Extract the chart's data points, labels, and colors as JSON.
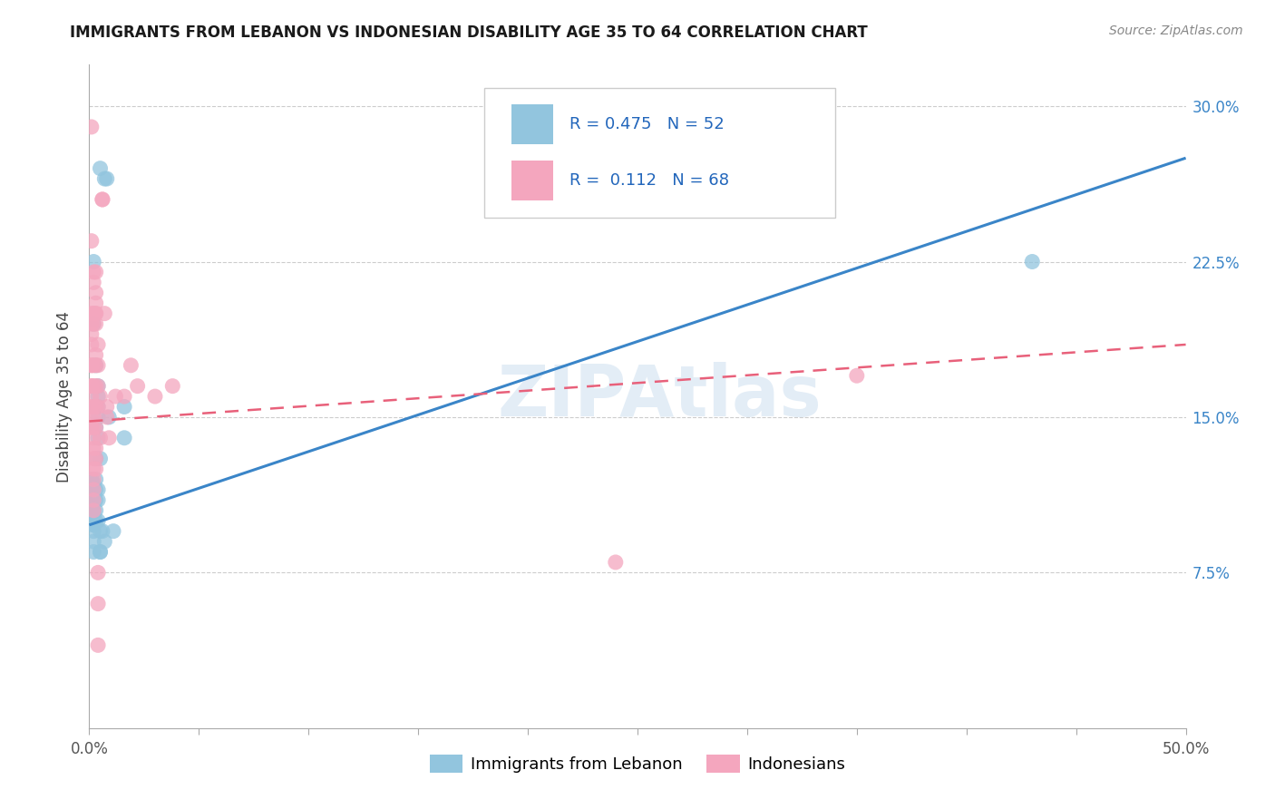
{
  "title": "IMMIGRANTS FROM LEBANON VS INDONESIAN DISABILITY AGE 35 TO 64 CORRELATION CHART",
  "source": "Source: ZipAtlas.com",
  "ylabel": "Disability Age 35 to 64",
  "ytick_labels": [
    "7.5%",
    "15.0%",
    "22.5%",
    "30.0%"
  ],
  "ytick_values": [
    0.075,
    0.15,
    0.225,
    0.3
  ],
  "xlim": [
    0.0,
    0.5
  ],
  "ylim": [
    0.0,
    0.32
  ],
  "legend_label1": "Immigrants from Lebanon",
  "legend_label2": "Indonesians",
  "color_blue": "#92c5de",
  "color_pink": "#f4a6be",
  "line_blue": "#3a85c8",
  "line_pink": "#e8607a",
  "watermark": "ZIPAtlas",
  "blue_line_y0": 0.098,
  "blue_line_y1": 0.275,
  "pink_line_y0": 0.148,
  "pink_line_y1": 0.185,
  "blue_points": [
    [
      0.001,
      0.12
    ],
    [
      0.001,
      0.115
    ],
    [
      0.001,
      0.112
    ],
    [
      0.001,
      0.108
    ],
    [
      0.002,
      0.118
    ],
    [
      0.002,
      0.11
    ],
    [
      0.002,
      0.105
    ],
    [
      0.002,
      0.1
    ],
    [
      0.002,
      0.098
    ],
    [
      0.002,
      0.225
    ],
    [
      0.002,
      0.195
    ],
    [
      0.002,
      0.115
    ],
    [
      0.002,
      0.11
    ],
    [
      0.002,
      0.108
    ],
    [
      0.002,
      0.105
    ],
    [
      0.002,
      0.103
    ],
    [
      0.002,
      0.1
    ],
    [
      0.002,
      0.098
    ],
    [
      0.002,
      0.095
    ],
    [
      0.002,
      0.09
    ],
    [
      0.002,
      0.085
    ],
    [
      0.003,
      0.175
    ],
    [
      0.003,
      0.155
    ],
    [
      0.003,
      0.145
    ],
    [
      0.003,
      0.13
    ],
    [
      0.003,
      0.12
    ],
    [
      0.003,
      0.115
    ],
    [
      0.003,
      0.11
    ],
    [
      0.003,
      0.105
    ],
    [
      0.003,
      0.1
    ],
    [
      0.004,
      0.165
    ],
    [
      0.004,
      0.16
    ],
    [
      0.004,
      0.15
    ],
    [
      0.004,
      0.14
    ],
    [
      0.004,
      0.115
    ],
    [
      0.004,
      0.11
    ],
    [
      0.004,
      0.1
    ],
    [
      0.004,
      0.155
    ],
    [
      0.005,
      0.13
    ],
    [
      0.005,
      0.095
    ],
    [
      0.005,
      0.085
    ],
    [
      0.005,
      0.085
    ],
    [
      0.005,
      0.27
    ],
    [
      0.006,
      0.095
    ],
    [
      0.007,
      0.265
    ],
    [
      0.007,
      0.09
    ],
    [
      0.008,
      0.265
    ],
    [
      0.009,
      0.15
    ],
    [
      0.011,
      0.095
    ],
    [
      0.016,
      0.155
    ],
    [
      0.016,
      0.14
    ],
    [
      0.43,
      0.225
    ]
  ],
  "pink_points": [
    [
      0.001,
      0.195
    ],
    [
      0.001,
      0.175
    ],
    [
      0.001,
      0.165
    ],
    [
      0.001,
      0.29
    ],
    [
      0.001,
      0.235
    ],
    [
      0.001,
      0.2
    ],
    [
      0.001,
      0.19
    ],
    [
      0.001,
      0.185
    ],
    [
      0.001,
      0.175
    ],
    [
      0.001,
      0.165
    ],
    [
      0.001,
      0.16
    ],
    [
      0.001,
      0.155
    ],
    [
      0.001,
      0.15
    ],
    [
      0.001,
      0.145
    ],
    [
      0.002,
      0.22
    ],
    [
      0.002,
      0.215
    ],
    [
      0.002,
      0.2
    ],
    [
      0.002,
      0.195
    ],
    [
      0.002,
      0.175
    ],
    [
      0.002,
      0.165
    ],
    [
      0.002,
      0.155
    ],
    [
      0.002,
      0.15
    ],
    [
      0.002,
      0.145
    ],
    [
      0.002,
      0.14
    ],
    [
      0.002,
      0.135
    ],
    [
      0.002,
      0.13
    ],
    [
      0.002,
      0.125
    ],
    [
      0.002,
      0.12
    ],
    [
      0.002,
      0.115
    ],
    [
      0.002,
      0.11
    ],
    [
      0.002,
      0.105
    ],
    [
      0.003,
      0.22
    ],
    [
      0.003,
      0.21
    ],
    [
      0.003,
      0.205
    ],
    [
      0.003,
      0.2
    ],
    [
      0.003,
      0.18
    ],
    [
      0.003,
      0.175
    ],
    [
      0.003,
      0.165
    ],
    [
      0.003,
      0.155
    ],
    [
      0.003,
      0.145
    ],
    [
      0.003,
      0.135
    ],
    [
      0.003,
      0.13
    ],
    [
      0.003,
      0.125
    ],
    [
      0.003,
      0.2
    ],
    [
      0.003,
      0.195
    ],
    [
      0.004,
      0.185
    ],
    [
      0.004,
      0.175
    ],
    [
      0.004,
      0.165
    ],
    [
      0.004,
      0.155
    ],
    [
      0.004,
      0.06
    ],
    [
      0.004,
      0.04
    ],
    [
      0.004,
      0.075
    ],
    [
      0.005,
      0.14
    ],
    [
      0.005,
      0.16
    ],
    [
      0.006,
      0.255
    ],
    [
      0.006,
      0.255
    ],
    [
      0.007,
      0.2
    ],
    [
      0.008,
      0.155
    ],
    [
      0.008,
      0.15
    ],
    [
      0.009,
      0.14
    ],
    [
      0.012,
      0.16
    ],
    [
      0.016,
      0.16
    ],
    [
      0.019,
      0.175
    ],
    [
      0.022,
      0.165
    ],
    [
      0.03,
      0.16
    ],
    [
      0.038,
      0.165
    ],
    [
      0.24,
      0.08
    ],
    [
      0.35,
      0.17
    ]
  ]
}
